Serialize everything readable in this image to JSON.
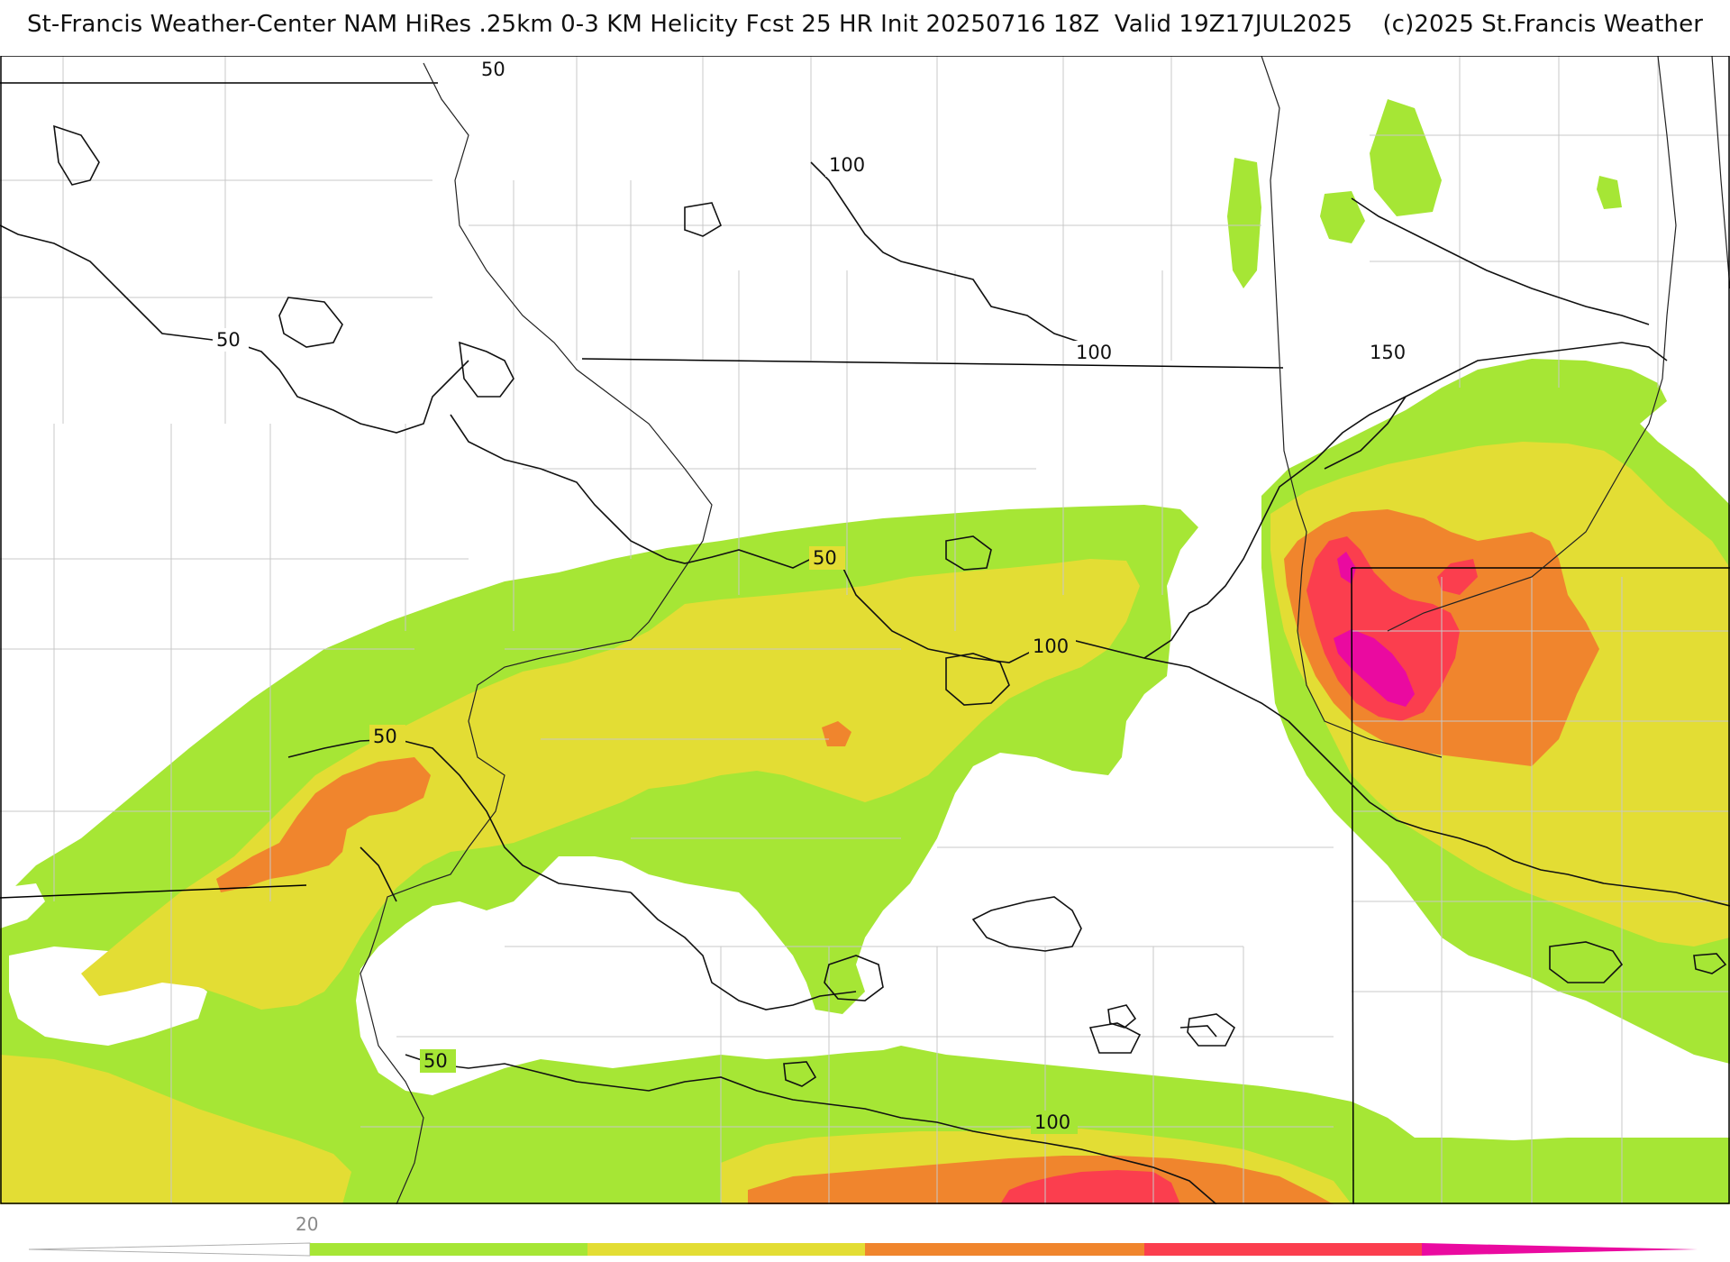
{
  "header": {
    "title": "St-Francis Weather-Center NAM HiRes .25km 0-3 KM Helicity Fcst 25 HR Init 20250716 18Z  Valid 19Z17JUL2025",
    "credit": "(c)2025 St.Francis Weather"
  },
  "contour_labels": [
    "50",
    "50",
    "50",
    "50",
    "50",
    "100",
    "100",
    "100",
    "100",
    "150"
  ],
  "colorbar": {
    "tick_label": "20",
    "colors": [
      "#a6e635",
      "#e3dd34",
      "#f0852d",
      "#fb3e4e",
      "#ea0aa0"
    ]
  },
  "fill_colors": {
    "green": "#a6e635",
    "yellow": "#e3dd34",
    "orange": "#f0852d",
    "red": "#fb3e4e",
    "magenta": "#ea0aa0"
  }
}
